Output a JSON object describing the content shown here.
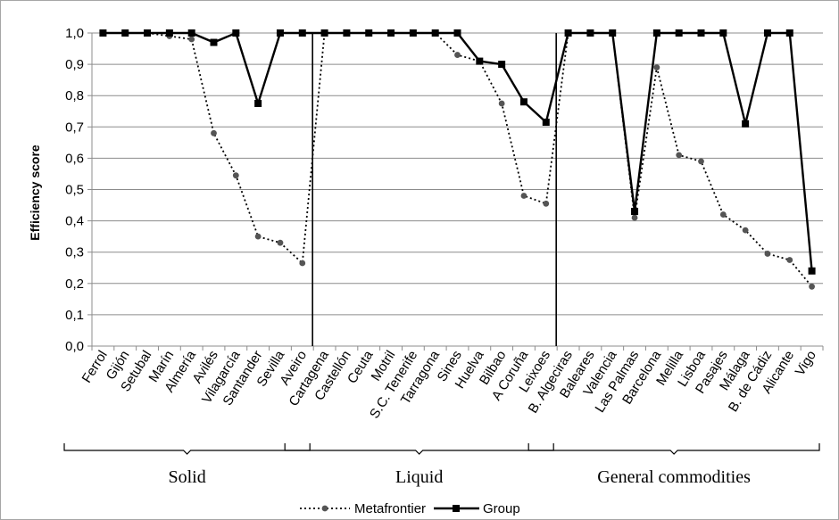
{
  "chart_data": {
    "type": "line",
    "ylabel": "Efficiency score",
    "ylim": [
      0,
      1
    ],
    "yticks": [
      "0,0",
      "0,1",
      "0,2",
      "0,3",
      "0,4",
      "0,5",
      "0,6",
      "0,7",
      "0,8",
      "0,9",
      "1,0"
    ],
    "grid": "horizontal",
    "legend_position": "bottom",
    "categories": [
      "Ferrol",
      "Gijón",
      "Setubal",
      "Marín",
      "Almería",
      "Avilés",
      "Vilagarcía",
      "Santander",
      "Sevilla",
      "Aveiro",
      "Cartagena",
      "Castellón",
      "Ceuta",
      "Motril",
      "S.C. Tenerife",
      "Tarragona",
      "Sines",
      "Huelva",
      "Bilbao",
      "A Coruña",
      "Leixoes",
      "B. Algeciras",
      "Baleares",
      "Valencia",
      "Las Palmas",
      "Barcelona",
      "Melilla",
      "Lisboa",
      "Pasajes",
      "Málaga",
      "B. de Cádiz",
      "Alicante",
      "Vigo"
    ],
    "groups": [
      {
        "name": "Solid",
        "start": 0,
        "end": 9
      },
      {
        "name": "Liquid",
        "start": 10,
        "end": 20
      },
      {
        "name": "General commodities",
        "start": 21,
        "end": 32
      }
    ],
    "series": [
      {
        "name": "Metafrontier",
        "style": "dotted-diamond",
        "color": "#000000",
        "values": [
          1.0,
          1.0,
          1.0,
          0.99,
          0.98,
          0.68,
          0.545,
          0.35,
          0.33,
          0.265,
          1.0,
          1.0,
          1.0,
          1.0,
          1.0,
          1.0,
          0.93,
          0.91,
          0.775,
          0.48,
          0.455,
          1.0,
          1.0,
          1.0,
          0.41,
          0.89,
          0.61,
          0.59,
          0.42,
          0.37,
          0.295,
          0.275,
          0.19
        ]
      },
      {
        "name": "Group",
        "style": "solid-square",
        "color": "#000000",
        "values": [
          1.0,
          1.0,
          1.0,
          1.0,
          1.0,
          0.97,
          1.0,
          0.775,
          1.0,
          1.0,
          1.0,
          1.0,
          1.0,
          1.0,
          1.0,
          1.0,
          1.0,
          0.91,
          0.9,
          0.78,
          0.715,
          1.0,
          1.0,
          1.0,
          0.43,
          1.0,
          1.0,
          1.0,
          1.0,
          0.71,
          1.0,
          1.0,
          0.24
        ]
      }
    ]
  }
}
